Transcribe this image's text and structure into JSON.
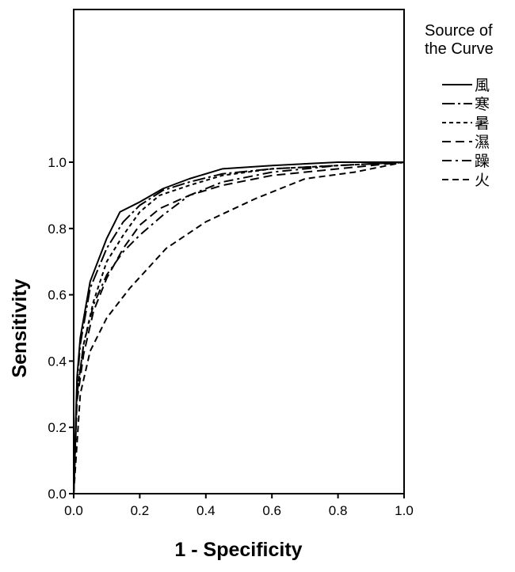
{
  "chart_data": {
    "type": "line",
    "title": "",
    "xlabel": "1 - Specificity",
    "ylabel": "Sensitivity",
    "xlim": [
      0.0,
      1.0
    ],
    "ylim": [
      0.0,
      1.0
    ],
    "xticks": [
      "0.0",
      "0.2",
      "0.4",
      "0.6",
      "0.8",
      "1.0"
    ],
    "yticks": [
      "0.0",
      "0.2",
      "0.4",
      "0.6",
      "0.8",
      "1.0"
    ],
    "grid": false,
    "legend": {
      "title_lines": [
        "Source of",
        "the Curve"
      ],
      "position": "right"
    },
    "series": [
      {
        "name": "風",
        "dash": "solid",
        "x": [
          0.0,
          0.01,
          0.02,
          0.05,
          0.1,
          0.14,
          0.2,
          0.27,
          0.35,
          0.45,
          0.6,
          0.8,
          1.0
        ],
        "y": [
          0.0,
          0.35,
          0.47,
          0.64,
          0.77,
          0.85,
          0.88,
          0.92,
          0.95,
          0.98,
          0.99,
          1.0,
          1.0
        ]
      },
      {
        "name": "寒",
        "dash": "long-dash-dot",
        "x": [
          0.0,
          0.01,
          0.02,
          0.05,
          0.1,
          0.15,
          0.2,
          0.27,
          0.35,
          0.45,
          0.6,
          0.8,
          1.0
        ],
        "y": [
          0.0,
          0.33,
          0.45,
          0.62,
          0.74,
          0.82,
          0.87,
          0.915,
          0.94,
          0.965,
          0.98,
          0.99,
          1.0
        ]
      },
      {
        "name": "暑",
        "dash": "short-dash",
        "x": [
          0.0,
          0.01,
          0.03,
          0.06,
          0.1,
          0.15,
          0.2,
          0.26,
          0.35,
          0.45,
          0.6,
          0.8,
          1.0
        ],
        "y": [
          0.0,
          0.3,
          0.45,
          0.58,
          0.7,
          0.78,
          0.85,
          0.9,
          0.93,
          0.96,
          0.98,
          0.99,
          1.0
        ]
      },
      {
        "name": "濕",
        "dash": "long-dash",
        "x": [
          0.0,
          0.01,
          0.03,
          0.06,
          0.1,
          0.15,
          0.2,
          0.26,
          0.35,
          0.45,
          0.6,
          0.8,
          1.0
        ],
        "y": [
          0.0,
          0.28,
          0.42,
          0.55,
          0.65,
          0.74,
          0.81,
          0.86,
          0.9,
          0.93,
          0.96,
          0.98,
          1.0
        ]
      },
      {
        "name": "躁",
        "dash": "dash-dot",
        "x": [
          0.0,
          0.01,
          0.03,
          0.06,
          0.1,
          0.15,
          0.2,
          0.27,
          0.35,
          0.45,
          0.6,
          0.8,
          1.0
        ],
        "y": [
          0.0,
          0.3,
          0.45,
          0.57,
          0.66,
          0.73,
          0.78,
          0.84,
          0.9,
          0.94,
          0.97,
          0.99,
          1.0
        ]
      },
      {
        "name": "火",
        "dash": "dash",
        "x": [
          0.0,
          0.02,
          0.05,
          0.1,
          0.17,
          0.28,
          0.4,
          0.55,
          0.7,
          0.85,
          1.0
        ],
        "y": [
          0.0,
          0.3,
          0.43,
          0.53,
          0.62,
          0.74,
          0.82,
          0.89,
          0.95,
          0.97,
          1.0
        ]
      }
    ]
  }
}
